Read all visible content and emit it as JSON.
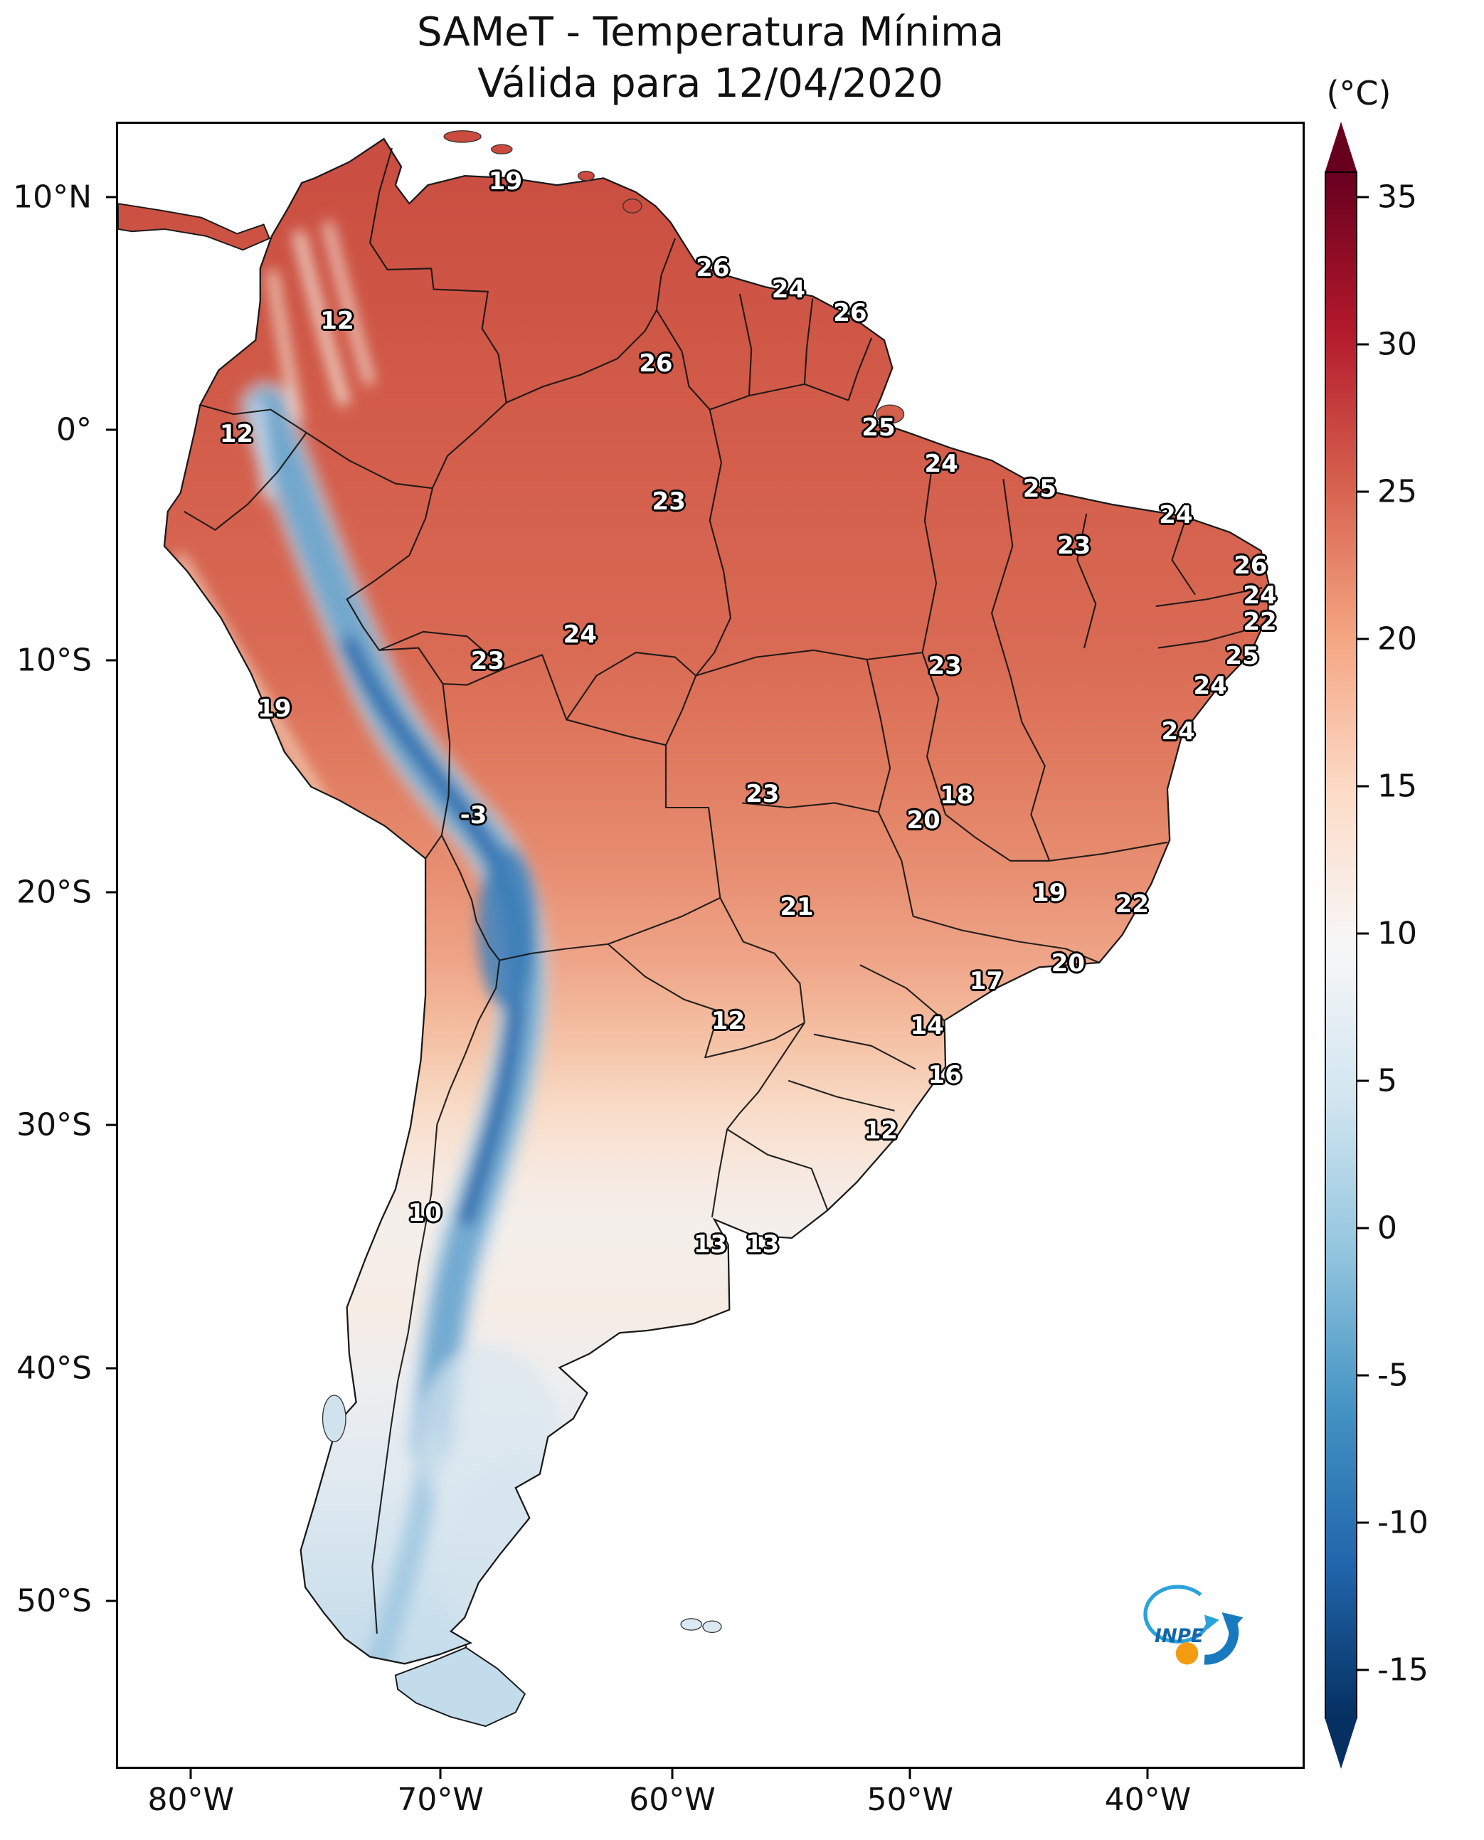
{
  "title": {
    "line1": "SAMeT - Temperatura Mínima",
    "line2": "Válida para 12/04/2020"
  },
  "colorbar": {
    "unit_label": "(°C)",
    "max": 35,
    "min": -15,
    "ticks": [
      35,
      30,
      25,
      20,
      15,
      10,
      5,
      0,
      -5,
      -10,
      -15
    ],
    "colormap": [
      "#67001f",
      "#b2182b",
      "#d6604d",
      "#f4a582",
      "#fddbc7",
      "#f7f7f7",
      "#d1e5f0",
      "#92c5de",
      "#4393c3",
      "#2166ac",
      "#053061"
    ]
  },
  "axes": {
    "lat_ticks": [
      {
        "label": "10°N",
        "pos": 4.6
      },
      {
        "label": "0°",
        "pos": 18.7
      },
      {
        "label": "10°S",
        "pos": 32.7
      },
      {
        "label": "20°S",
        "pos": 46.8
      },
      {
        "label": "30°S",
        "pos": 60.9
      },
      {
        "label": "40°S",
        "pos": 75.7
      },
      {
        "label": "50°S",
        "pos": 89.8
      }
    ],
    "lon_ticks": [
      {
        "label": "80°W",
        "pos": 6.3
      },
      {
        "label": "70°W",
        "pos": 27.3
      },
      {
        "label": "60°W",
        "pos": 46.8
      },
      {
        "label": "50°W",
        "pos": 66.8
      },
      {
        "label": "40°W",
        "pos": 86.8
      }
    ]
  },
  "chart_data": {
    "type": "heatmap",
    "title": "SAMeT - Temperatura Mínima",
    "valid_date": "12/04/2020",
    "unit": "°C",
    "region": "South America",
    "colorbar_range": [
      -15,
      35
    ],
    "points": [
      {
        "v": 19,
        "x": 32.7,
        "y": 3.5
      },
      {
        "v": 12,
        "x": 18.5,
        "y": 12.0
      },
      {
        "v": 26,
        "x": 50.2,
        "y": 8.8
      },
      {
        "v": 24,
        "x": 56.6,
        "y": 10.1
      },
      {
        "v": 26,
        "x": 61.8,
        "y": 11.5
      },
      {
        "v": 26,
        "x": 45.4,
        "y": 14.6
      },
      {
        "v": 12,
        "x": 10.0,
        "y": 18.9
      },
      {
        "v": 25,
        "x": 64.2,
        "y": 18.5
      },
      {
        "v": 24,
        "x": 69.5,
        "y": 20.7
      },
      {
        "v": 25,
        "x": 77.8,
        "y": 22.2
      },
      {
        "v": 23,
        "x": 46.5,
        "y": 23.0
      },
      {
        "v": 23,
        "x": 80.7,
        "y": 25.7
      },
      {
        "v": 24,
        "x": 89.3,
        "y": 23.8
      },
      {
        "v": 26,
        "x": 95.6,
        "y": 26.9
      },
      {
        "v": 24,
        "x": 96.4,
        "y": 28.7
      },
      {
        "v": 22,
        "x": 96.4,
        "y": 30.3
      },
      {
        "v": 24,
        "x": 39.0,
        "y": 31.1
      },
      {
        "v": 23,
        "x": 31.2,
        "y": 32.7
      },
      {
        "v": 25,
        "x": 94.9,
        "y": 32.4
      },
      {
        "v": 23,
        "x": 69.8,
        "y": 33.0
      },
      {
        "v": 24,
        "x": 92.2,
        "y": 34.2
      },
      {
        "v": 19,
        "x": 13.2,
        "y": 35.6
      },
      {
        "v": 24,
        "x": 89.5,
        "y": 37.0
      },
      {
        "v": 23,
        "x": 54.4,
        "y": 40.8
      },
      {
        "v": 18,
        "x": 70.8,
        "y": 40.9
      },
      {
        "v": 20,
        "x": 68.0,
        "y": 42.4
      },
      {
        "v": -3,
        "x": 30.0,
        "y": 42.1
      },
      {
        "v": 21,
        "x": 57.3,
        "y": 47.7
      },
      {
        "v": 19,
        "x": 78.6,
        "y": 46.8
      },
      {
        "v": 22,
        "x": 85.6,
        "y": 47.5
      },
      {
        "v": 17,
        "x": 73.3,
        "y": 52.2
      },
      {
        "v": 20,
        "x": 80.2,
        "y": 51.1
      },
      {
        "v": 12,
        "x": 51.5,
        "y": 54.6
      },
      {
        "v": 14,
        "x": 68.3,
        "y": 54.9
      },
      {
        "v": 16,
        "x": 69.8,
        "y": 57.9
      },
      {
        "v": 12,
        "x": 64.4,
        "y": 61.3
      },
      {
        "v": 10,
        "x": 25.9,
        "y": 66.3
      },
      {
        "v": 13,
        "x": 50.0,
        "y": 68.2
      },
      {
        "v": 13,
        "x": 54.4,
        "y": 68.2
      }
    ]
  },
  "logo": {
    "text": "INPE"
  }
}
